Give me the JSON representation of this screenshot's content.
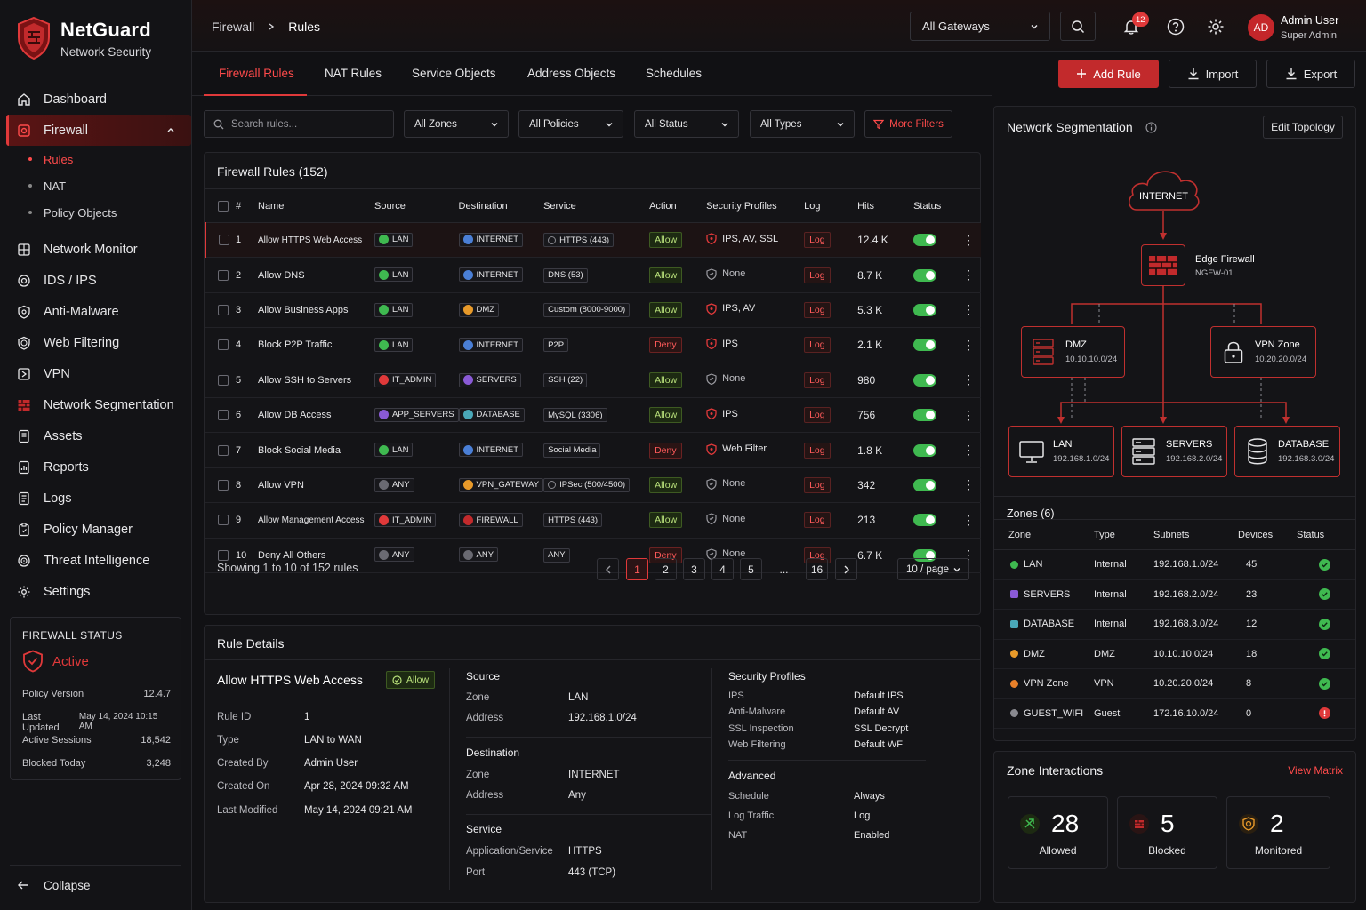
{
  "brand": {
    "name": "NetGuard",
    "subtitle": "Network Security"
  },
  "sidebar": {
    "items": [
      {
        "label": "Dashboard",
        "icon": "home-icon"
      },
      {
        "label": "Firewall",
        "icon": "firewall-icon",
        "active": true
      },
      {
        "label": "Network Monitor",
        "icon": "network-monitor-icon"
      },
      {
        "label": "IDS / IPS",
        "icon": "ids-icon"
      },
      {
        "label": "Anti-Malware",
        "icon": "shield-icon"
      },
      {
        "label": "Web Filtering",
        "icon": "web-filter-icon"
      },
      {
        "label": "VPN",
        "icon": "vpn-icon"
      },
      {
        "label": "Network Segmentation",
        "icon": "segmentation-icon"
      },
      {
        "label": "Assets",
        "icon": "assets-icon"
      },
      {
        "label": "Reports",
        "icon": "reports-icon"
      },
      {
        "label": "Logs",
        "icon": "logs-icon"
      },
      {
        "label": "Policy Manager",
        "icon": "policy-icon"
      },
      {
        "label": "Threat Intelligence",
        "icon": "threat-icon"
      },
      {
        "label": "Settings",
        "icon": "gear-icon"
      }
    ],
    "subitems": [
      {
        "label": "Rules",
        "active": true
      },
      {
        "label": "NAT"
      },
      {
        "label": "Policy Objects"
      }
    ],
    "status": {
      "title": "FIREWALL STATUS",
      "state": "Active",
      "rows": [
        {
          "k": "Policy Version",
          "v": "12.4.7"
        },
        {
          "k": "Last Updated",
          "v": "May 14, 2024 10:15 AM"
        },
        {
          "k": "Active Sessions",
          "v": "18,542"
        },
        {
          "k": "Blocked Today",
          "v": "3,248"
        }
      ]
    },
    "collapse_label": "Collapse"
  },
  "header": {
    "breadcrumb": [
      "Firewall",
      "Rules"
    ],
    "gateway": "All Gateways",
    "notifications": "12",
    "user": {
      "initials": "AD",
      "name": "Admin User",
      "role": "Super Admin"
    }
  },
  "tabs": [
    "Firewall Rules",
    "NAT Rules",
    "Service Objects",
    "Address Objects",
    "Schedules"
  ],
  "actions": {
    "add": "Add Rule",
    "import": "Import",
    "export": "Export"
  },
  "filters": {
    "search_placeholder": "Search rules...",
    "selects": [
      "All Zones",
      "All Policies",
      "All Status",
      "All Types"
    ],
    "more": "More Filters"
  },
  "rules_table": {
    "title": "Firewall Rules (152)",
    "columns": [
      "#",
      "Name",
      "Source",
      "Destination",
      "Service",
      "Action",
      "Security Profiles",
      "Log",
      "Hits",
      "Status"
    ],
    "rows": [
      {
        "n": "1",
        "name": "Allow HTTPS Web Access",
        "src": "LAN",
        "srcColor": "#3fb950",
        "dst": "INTERNET",
        "dstColor": "#4a7fd6",
        "svc": "HTTPS (443)",
        "svcIcon": true,
        "action": "Allow",
        "prof": "IPS, AV, SSL",
        "profOn": true,
        "log": "Log",
        "hits": "12.4 K"
      },
      {
        "n": "2",
        "name": "Allow DNS",
        "src": "LAN",
        "srcColor": "#3fb950",
        "dst": "INTERNET",
        "dstColor": "#4a7fd6",
        "svc": "DNS (53)",
        "action": "Allow",
        "prof": "None",
        "profOn": false,
        "log": "Log",
        "hits": "8.7 K"
      },
      {
        "n": "3",
        "name": "Allow Business Apps",
        "src": "LAN",
        "srcColor": "#3fb950",
        "dst": "DMZ",
        "dstColor": "#e89a2a",
        "svc": "Custom (8000-9000)",
        "action": "Allow",
        "prof": "IPS, AV",
        "profOn": true,
        "log": "Log",
        "hits": "5.3 K"
      },
      {
        "n": "4",
        "name": "Block P2P Traffic",
        "src": "LAN",
        "srcColor": "#3fb950",
        "dst": "INTERNET",
        "dstColor": "#4a7fd6",
        "svc": "P2P",
        "action": "Deny",
        "prof": "IPS",
        "profOn": true,
        "log": "Log",
        "hits": "2.1 K"
      },
      {
        "n": "5",
        "name": "Allow SSH to Servers",
        "src": "IT_ADMIN",
        "srcColor": "#e0393a",
        "dst": "SERVERS",
        "dstColor": "#8a5ad6",
        "svc": "SSH (22)",
        "action": "Allow",
        "prof": "None",
        "profOn": false,
        "log": "Log",
        "hits": "980"
      },
      {
        "n": "6",
        "name": "Allow DB Access",
        "src": "APP_SERVERS",
        "srcColor": "#8a5ad6",
        "dst": "DATABASE",
        "dstColor": "#4aa8b8",
        "svc": "MySQL (3306)",
        "action": "Allow",
        "prof": "IPS",
        "profOn": true,
        "log": "Log",
        "hits": "756"
      },
      {
        "n": "7",
        "name": "Block Social Media",
        "src": "LAN",
        "srcColor": "#3fb950",
        "dst": "INTERNET",
        "dstColor": "#4a7fd6",
        "svc": "Social Media",
        "action": "Deny",
        "prof": "Web Filter",
        "profOn": true,
        "log": "Log",
        "hits": "1.8 K"
      },
      {
        "n": "8",
        "name": "Allow VPN",
        "src": "ANY",
        "srcColor": "#6a6a72",
        "dst": "VPN_GATEWAY",
        "dstColor": "#e89a2a",
        "svc": "IPSec (500/4500)",
        "svcIcon": true,
        "action": "Allow",
        "prof": "None",
        "profOn": false,
        "log": "Log",
        "hits": "342"
      },
      {
        "n": "9",
        "name": "Allow Management Access",
        "src": "IT_ADMIN",
        "srcColor": "#e0393a",
        "dst": "FIREWALL",
        "dstColor": "#c22a2c",
        "svc": "HTTPS (443)",
        "action": "Allow",
        "prof": "None",
        "profOn": false,
        "log": "Log",
        "hits": "213"
      },
      {
        "n": "10",
        "name": "Deny All Others",
        "src": "ANY",
        "srcColor": "#6a6a72",
        "dst": "ANY",
        "dstColor": "#6a6a72",
        "svc": "ANY",
        "action": "Deny",
        "prof": "None",
        "profOn": false,
        "log": "Log",
        "hits": "6.7 K"
      }
    ],
    "footer": "Showing 1 to 10 of 152 rules",
    "pages": [
      "1",
      "2",
      "3",
      "4",
      "5",
      "...",
      "16"
    ],
    "per_page": "10 / page"
  },
  "rule_details": {
    "title": "Rule Details",
    "name": "Allow HTTPS Web Access",
    "action": "Allow",
    "meta": [
      {
        "k": "Rule ID",
        "v": "1"
      },
      {
        "k": "Type",
        "v": "LAN to WAN"
      },
      {
        "k": "Created By",
        "v": "Admin User"
      },
      {
        "k": "Created On",
        "v": "Apr 28, 2024 09:32 AM"
      },
      {
        "k": "Last Modified",
        "v": "May 14, 2024 09:21 AM"
      }
    ],
    "source": {
      "title": "Source",
      "rows": [
        {
          "k": "Zone",
          "v": "LAN"
        },
        {
          "k": "Address",
          "v": "192.168.1.0/24"
        }
      ]
    },
    "destination": {
      "title": "Destination",
      "rows": [
        {
          "k": "Zone",
          "v": "INTERNET"
        },
        {
          "k": "Address",
          "v": "Any"
        }
      ]
    },
    "service": {
      "title": "Service",
      "rows": [
        {
          "k": "Application/Service",
          "v": "HTTPS"
        },
        {
          "k": "Port",
          "v": "443 (TCP)"
        }
      ]
    },
    "profiles": {
      "title": "Security Profiles",
      "rows": [
        {
          "k": "IPS",
          "v": "Default IPS"
        },
        {
          "k": "Anti-Malware",
          "v": "Default AV"
        },
        {
          "k": "SSL Inspection",
          "v": "SSL Decrypt"
        },
        {
          "k": "Web Filtering",
          "v": "Default WF"
        }
      ]
    },
    "advanced": {
      "title": "Advanced",
      "rows": [
        {
          "k": "Schedule",
          "v": "Always"
        },
        {
          "k": "Log Traffic",
          "v": "Log"
        },
        {
          "k": "NAT",
          "v": "Enabled"
        }
      ]
    }
  },
  "segmentation": {
    "title": "Network Segmentation",
    "edit": "Edit Topology",
    "internet": "INTERNET",
    "edge": {
      "name": "Edge Firewall",
      "id": "NGFW-01"
    },
    "dmz": {
      "name": "DMZ",
      "subnet": "10.10.10.0/24"
    },
    "vpn": {
      "name": "VPN Zone",
      "subnet": "10.20.20.0/24"
    },
    "lan": {
      "name": "LAN",
      "subnet": "192.168.1.0/24"
    },
    "servers": {
      "name": "SERVERS",
      "subnet": "192.168.2.0/24"
    },
    "database": {
      "name": "DATABASE",
      "subnet": "192.168.3.0/24"
    }
  },
  "zones": {
    "title": "Zones (6)",
    "columns": [
      "Zone",
      "Type",
      "Subnets",
      "Devices",
      "Status"
    ],
    "rows": [
      {
        "zone": "LAN",
        "color": "#3fb950",
        "type": "Internal",
        "subnet": "192.168.1.0/24",
        "devices": "45",
        "ok": true
      },
      {
        "zone": "SERVERS",
        "color": "#8a5ad6",
        "type": "Internal",
        "subnet": "192.168.2.0/24",
        "devices": "23",
        "ok": true
      },
      {
        "zone": "DATABASE",
        "color": "#4aa8b8",
        "type": "Internal",
        "subnet": "192.168.3.0/24",
        "devices": "12",
        "ok": true
      },
      {
        "zone": "DMZ",
        "color": "#e89a2a",
        "type": "DMZ",
        "subnet": "10.10.10.0/24",
        "devices": "18",
        "ok": true
      },
      {
        "zone": "VPN Zone",
        "color": "#e8802a",
        "type": "VPN",
        "subnet": "10.20.20.0/24",
        "devices": "8",
        "ok": true
      },
      {
        "zone": "GUEST_WIFI",
        "color": "#8a8a90",
        "type": "Guest",
        "subnet": "172.16.10.0/24",
        "devices": "0",
        "ok": false
      }
    ]
  },
  "interactions": {
    "title": "Zone Interactions",
    "link": "View Matrix",
    "cards": [
      {
        "num": "28",
        "label": "Allowed",
        "color": "#3fb950"
      },
      {
        "num": "5",
        "label": "Blocked",
        "color": "#e0393a"
      },
      {
        "num": "2",
        "label": "Monitored",
        "color": "#e89a2a"
      }
    ]
  },
  "colors": {
    "accent": "#e0393a",
    "allow": "#3fb950",
    "bg": "#111114"
  }
}
